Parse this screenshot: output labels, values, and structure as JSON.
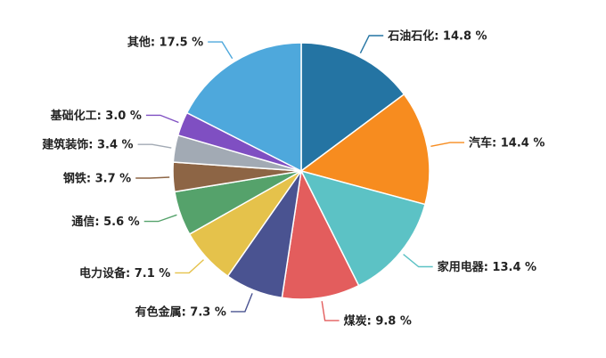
{
  "chart_data": {
    "type": "pie",
    "title": "",
    "unit": "%",
    "slices": [
      {
        "label": "石油石化",
        "value": 14.8,
        "display": "石油石化: 14.8 %",
        "color": "#2474a3"
      },
      {
        "label": "汽车",
        "value": 14.4,
        "display": "汽车: 14.4 %",
        "color": "#f78c1f"
      },
      {
        "label": "家用电器",
        "value": 13.4,
        "display": "家用电器: 13.4 %",
        "color": "#5cc2c5"
      },
      {
        "label": "煤炭",
        "value": 9.8,
        "display": "煤炭: 9.8 %",
        "color": "#e35d5d"
      },
      {
        "label": "有色金属",
        "value": 7.3,
        "display": "有色金属: 7.3 %",
        "color": "#4a5391"
      },
      {
        "label": "电力设备",
        "value": 7.1,
        "display": "电力设备: 7.1 %",
        "color": "#e5c24b"
      },
      {
        "label": "通信",
        "value": 5.6,
        "display": "通信: 5.6 %",
        "color": "#55a26b"
      },
      {
        "label": "钢铁",
        "value": 3.7,
        "display": "钢铁: 3.7 %",
        "color": "#8d6545"
      },
      {
        "label": "建筑装饰",
        "value": 3.4,
        "display": "建筑装饰: 3.4 %",
        "color": "#a2aab4"
      },
      {
        "label": "基础化工",
        "value": 3.0,
        "display": "基础化工: 3.0 %",
        "color": "#7f4fc2"
      },
      {
        "label": "其他",
        "value": 17.5,
        "display": "其他: 17.5 %",
        "color": "#4ea8dc"
      }
    ]
  }
}
